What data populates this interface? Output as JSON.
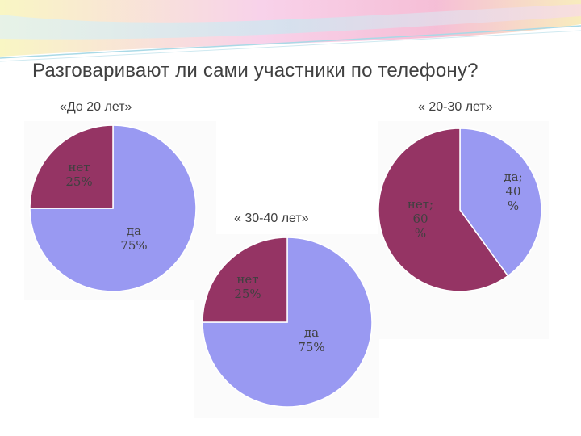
{
  "title": "Разговаривают ли сами участники по телефону?",
  "colors": {
    "da": "#9999f2",
    "net": "#953464",
    "edge": "#ffffff"
  },
  "chart_data": [
    {
      "type": "pie",
      "title": "«До 20 лет»",
      "categories": [
        "да",
        "нет"
      ],
      "values": [
        75,
        25
      ],
      "labels": [
        [
          "да",
          "75%"
        ],
        [
          "нет",
          "25%"
        ]
      ]
    },
    {
      "type": "pie",
      "title": "« 20-30 лет»",
      "categories": [
        "да",
        "нет"
      ],
      "values": [
        40,
        60
      ],
      "labels": [
        [
          "да;",
          "40",
          "%"
        ],
        [
          "нет;",
          "60",
          "%"
        ]
      ]
    },
    {
      "type": "pie",
      "title": "« 30-40 лет»",
      "categories": [
        "да",
        "нет"
      ],
      "values": [
        75,
        25
      ],
      "labels": [
        [
          "да",
          "75%"
        ],
        [
          "нет",
          "25%"
        ]
      ]
    }
  ]
}
